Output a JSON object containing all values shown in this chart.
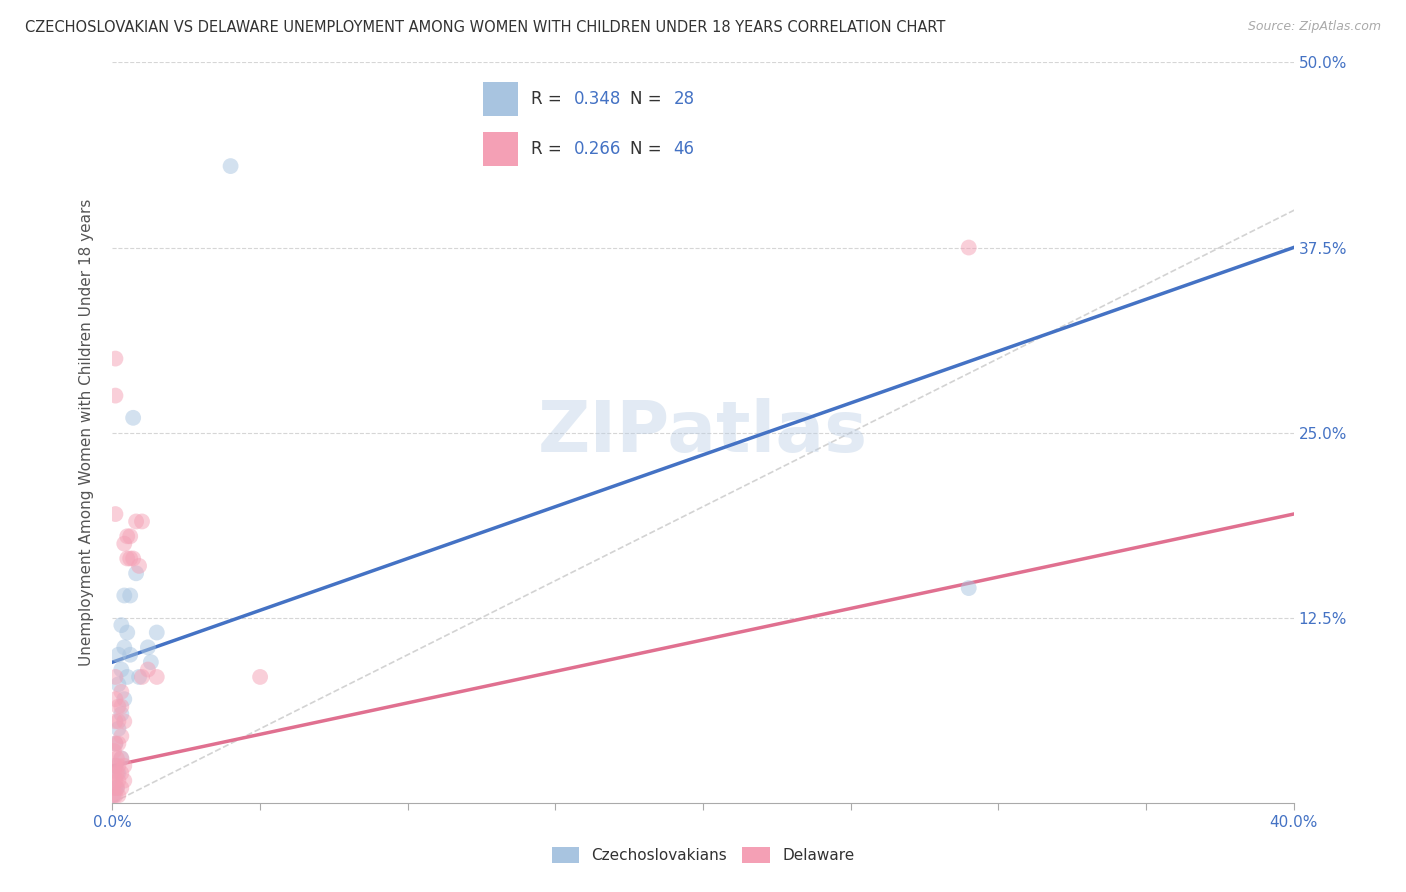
{
  "title": "CZECHOSLOVAKIAN VS DELAWARE UNEMPLOYMENT AMONG WOMEN WITH CHILDREN UNDER 18 YEARS CORRELATION CHART",
  "source": "Source: ZipAtlas.com",
  "ylabel": "Unemployment Among Women with Children Under 18 years",
  "xlim": [
    0.0,
    0.4
  ],
  "ylim": [
    0.0,
    0.5
  ],
  "xtick_positions": [
    0.0,
    0.05,
    0.1,
    0.15,
    0.2,
    0.25,
    0.3,
    0.35,
    0.4
  ],
  "xtick_labels_show": {
    "0.0": "0.0%",
    "0.40": "40.0%"
  },
  "yticks_right": [
    0.125,
    0.25,
    0.375,
    0.5
  ],
  "yticklabels_right": [
    "12.5%",
    "25.0%",
    "37.5%",
    "50.0%"
  ],
  "grid_yticks": [
    0.125,
    0.25,
    0.375,
    0.5
  ],
  "grid_color": "#cccccc",
  "watermark": "ZIPatlas",
  "legend_R_blue": "0.348",
  "legend_N_blue": "28",
  "legend_R_pink": "0.266",
  "legend_N_pink": "46",
  "legend_label_blue": "Czechoslovakians",
  "legend_label_pink": "Delaware",
  "blue_scatter_color": "#a8c4e0",
  "pink_scatter_color": "#f4a0b5",
  "blue_line_color": "#4472c4",
  "pink_line_color": "#e07090",
  "dashed_line_color": "#c8c8c8",
  "blue_dots": [
    [
      0.0005,
      0.005
    ],
    [
      0.001,
      0.01
    ],
    [
      0.001,
      0.025
    ],
    [
      0.001,
      0.04
    ],
    [
      0.0015,
      0.01
    ],
    [
      0.002,
      0.02
    ],
    [
      0.002,
      0.05
    ],
    [
      0.002,
      0.08
    ],
    [
      0.002,
      0.1
    ],
    [
      0.003,
      0.03
    ],
    [
      0.003,
      0.06
    ],
    [
      0.003,
      0.09
    ],
    [
      0.003,
      0.12
    ],
    [
      0.004,
      0.07
    ],
    [
      0.004,
      0.105
    ],
    [
      0.004,
      0.14
    ],
    [
      0.005,
      0.085
    ],
    [
      0.005,
      0.115
    ],
    [
      0.006,
      0.1
    ],
    [
      0.006,
      0.14
    ],
    [
      0.007,
      0.26
    ],
    [
      0.008,
      0.155
    ],
    [
      0.009,
      0.085
    ],
    [
      0.012,
      0.105
    ],
    [
      0.013,
      0.095
    ],
    [
      0.015,
      0.115
    ],
    [
      0.04,
      0.43
    ],
    [
      0.29,
      0.145
    ]
  ],
  "pink_dots": [
    [
      0.0002,
      0.005
    ],
    [
      0.0003,
      0.01
    ],
    [
      0.0005,
      0.02
    ],
    [
      0.0005,
      0.035
    ],
    [
      0.001,
      0.005
    ],
    [
      0.001,
      0.015
    ],
    [
      0.001,
      0.025
    ],
    [
      0.001,
      0.04
    ],
    [
      0.001,
      0.055
    ],
    [
      0.001,
      0.07
    ],
    [
      0.001,
      0.085
    ],
    [
      0.001,
      0.3
    ],
    [
      0.001,
      0.275
    ],
    [
      0.001,
      0.195
    ],
    [
      0.0015,
      0.01
    ],
    [
      0.0015,
      0.02
    ],
    [
      0.0015,
      0.03
    ],
    [
      0.002,
      0.005
    ],
    [
      0.002,
      0.015
    ],
    [
      0.002,
      0.025
    ],
    [
      0.002,
      0.04
    ],
    [
      0.002,
      0.055
    ],
    [
      0.002,
      0.065
    ],
    [
      0.003,
      0.01
    ],
    [
      0.003,
      0.02
    ],
    [
      0.003,
      0.03
    ],
    [
      0.003,
      0.045
    ],
    [
      0.003,
      0.065
    ],
    [
      0.003,
      0.075
    ],
    [
      0.004,
      0.015
    ],
    [
      0.004,
      0.025
    ],
    [
      0.004,
      0.055
    ],
    [
      0.004,
      0.175
    ],
    [
      0.005,
      0.165
    ],
    [
      0.005,
      0.18
    ],
    [
      0.006,
      0.18
    ],
    [
      0.006,
      0.165
    ],
    [
      0.007,
      0.165
    ],
    [
      0.008,
      0.19
    ],
    [
      0.009,
      0.16
    ],
    [
      0.01,
      0.085
    ],
    [
      0.01,
      0.19
    ],
    [
      0.012,
      0.09
    ],
    [
      0.015,
      0.085
    ],
    [
      0.05,
      0.085
    ],
    [
      0.29,
      0.375
    ]
  ],
  "blue_line_x": [
    0.0,
    0.4
  ],
  "blue_line_y": [
    0.095,
    0.375
  ],
  "pink_line_x": [
    0.0,
    0.4
  ],
  "pink_line_y": [
    0.025,
    0.195
  ],
  "dashed_line_x": [
    0.0,
    0.5
  ],
  "dashed_line_y": [
    0.0,
    0.5
  ],
  "marker_size": 130,
  "marker_alpha": 0.5,
  "marker_linewidth": 0.5
}
